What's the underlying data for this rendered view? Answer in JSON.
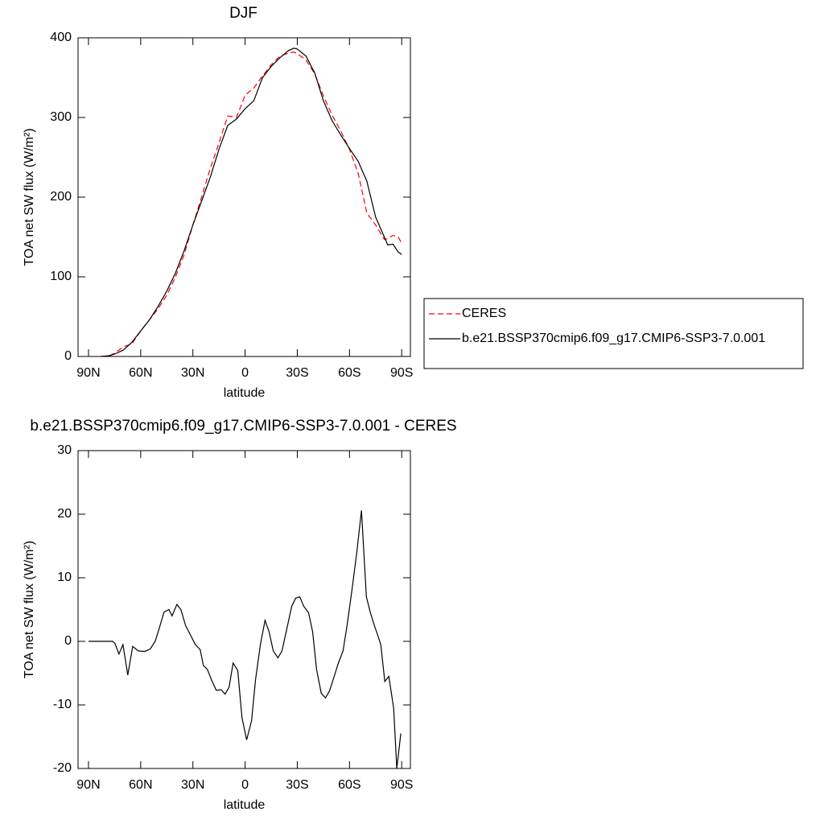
{
  "chart_data": [
    {
      "type": "line",
      "title": "DJF",
      "xlabel": "latitude",
      "ylabel": "TOA net SW flux (W/m²)",
      "x": [
        83,
        78,
        75,
        70,
        65,
        60,
        55,
        50,
        45,
        40,
        35,
        30,
        25,
        20,
        15,
        10,
        5,
        0,
        -5,
        -10,
        -15,
        -20,
        -25,
        -28,
        -30,
        -35,
        -40,
        -45,
        -50,
        -55,
        -60,
        -65,
        -70,
        -75,
        -80,
        -82,
        -85,
        -88,
        -90
      ],
      "series": [
        {
          "name": "CERES",
          "color": "#ff0000",
          "dashed": true,
          "values": [
            0,
            1,
            4,
            12,
            16,
            32,
            46,
            60,
            77,
            100,
            128,
            165,
            200,
            236,
            268,
            302,
            300,
            328,
            337,
            352,
            366,
            377,
            381,
            382,
            380,
            372,
            355,
            327,
            303,
            283,
            260,
            230,
            180,
            165,
            147,
            148,
            152,
            150,
            142
          ]
        },
        {
          "name": "b.e21.BSSP370cmip6.f09_g17.CMIP6-SSP3-7.0.001",
          "color": "#000000",
          "dashed": false,
          "values": [
            0,
            1,
            3,
            8,
            18,
            32,
            46,
            63,
            82,
            105,
            133,
            165,
            195,
            225,
            260,
            290,
            298,
            311,
            321,
            350,
            364,
            375,
            384,
            387,
            386,
            377,
            356,
            321,
            296,
            278,
            261,
            245,
            220,
            175,
            150,
            140,
            141,
            131,
            128
          ]
        }
      ],
      "xlim": [
        96,
        -95
      ],
      "ylim": [
        0,
        400
      ],
      "xticks": [
        {
          "value": 90,
          "label": "90N"
        },
        {
          "value": 60,
          "label": "60N"
        },
        {
          "value": 30,
          "label": "30N"
        },
        0,
        {
          "value": -30,
          "label": "30S"
        },
        {
          "value": -60,
          "label": "60S"
        },
        {
          "value": -90,
          "label": "90S"
        }
      ],
      "yticks": [
        0,
        100,
        200,
        300,
        400
      ],
      "legend": "right"
    },
    {
      "type": "line",
      "title": "b.e21.BSSP370cmip6.f09_g17.CMIP6-SSP3-7.0.001 - CERES",
      "xlabel": "latitude",
      "ylabel": "TOA net SW flux (W/m²)",
      "x": [
        90,
        76.2,
        74.8,
        72.5,
        70.2,
        67.4,
        64.6,
        61.4,
        57.7,
        54.5,
        51.7,
        49.4,
        46.6,
        43.8,
        42,
        39.2,
        36.9,
        34.2,
        31.4,
        28.6,
        25.8,
        24,
        21.7,
        19.4,
        16.6,
        13.8,
        11.5,
        9.2,
        6.9,
        4.2,
        1.8,
        -0.9,
        -3.7,
        -6,
        -8.8,
        -11.5,
        -13.8,
        -16.2,
        -18.9,
        -21.2,
        -24,
        -26.8,
        -29.1,
        -31.4,
        -33.7,
        -36.5,
        -38.8,
        -41.1,
        -43.8,
        -46.2,
        -48.5,
        -51.2,
        -53.5,
        -56.3,
        -58.6,
        -61.4,
        -64.2,
        -66.9,
        -69.7,
        -72,
        -74.3,
        -76.2,
        -78,
        -80.3,
        -82.6,
        -85.4,
        -87.2,
        -89.5
      ],
      "values": [
        0,
        0,
        -0.3,
        -2,
        -0.5,
        -5.3,
        -0.8,
        -1.5,
        -1.6,
        -1.2,
        0,
        2,
        4.6,
        5,
        4,
        5.8,
        5,
        2.5,
        1,
        -0.5,
        -1.3,
        -3.8,
        -4.4,
        -6,
        -7.7,
        -7.6,
        -8.3,
        -7.2,
        -3.4,
        -4.6,
        -12,
        -15.5,
        -12.5,
        -6,
        -0.5,
        3.3,
        1.5,
        -1.5,
        -2.6,
        -1.5,
        2,
        5.5,
        6.8,
        7,
        5.5,
        4.5,
        1.5,
        -4.5,
        -8.2,
        -8.9,
        -7.8,
        -5.5,
        -3.5,
        -1.5,
        2.5,
        8,
        14,
        20.6,
        7,
        4.5,
        2.5,
        1,
        -0.5,
        -6.3,
        -5.5,
        -10.5,
        -20,
        -14.5
      ],
      "color": "#000000",
      "xlim": [
        96,
        -95
      ],
      "ylim": [
        -20,
        30
      ],
      "xticks": [
        {
          "value": 90,
          "label": "90N"
        },
        {
          "value": 60,
          "label": "60N"
        },
        {
          "value": 30,
          "label": "30N"
        },
        0,
        {
          "value": -30,
          "label": "30S"
        },
        {
          "value": -60,
          "label": "60S"
        },
        {
          "value": -90,
          "label": "90S"
        }
      ],
      "yticks": [
        -20,
        -10,
        0,
        10,
        20,
        30
      ]
    }
  ]
}
